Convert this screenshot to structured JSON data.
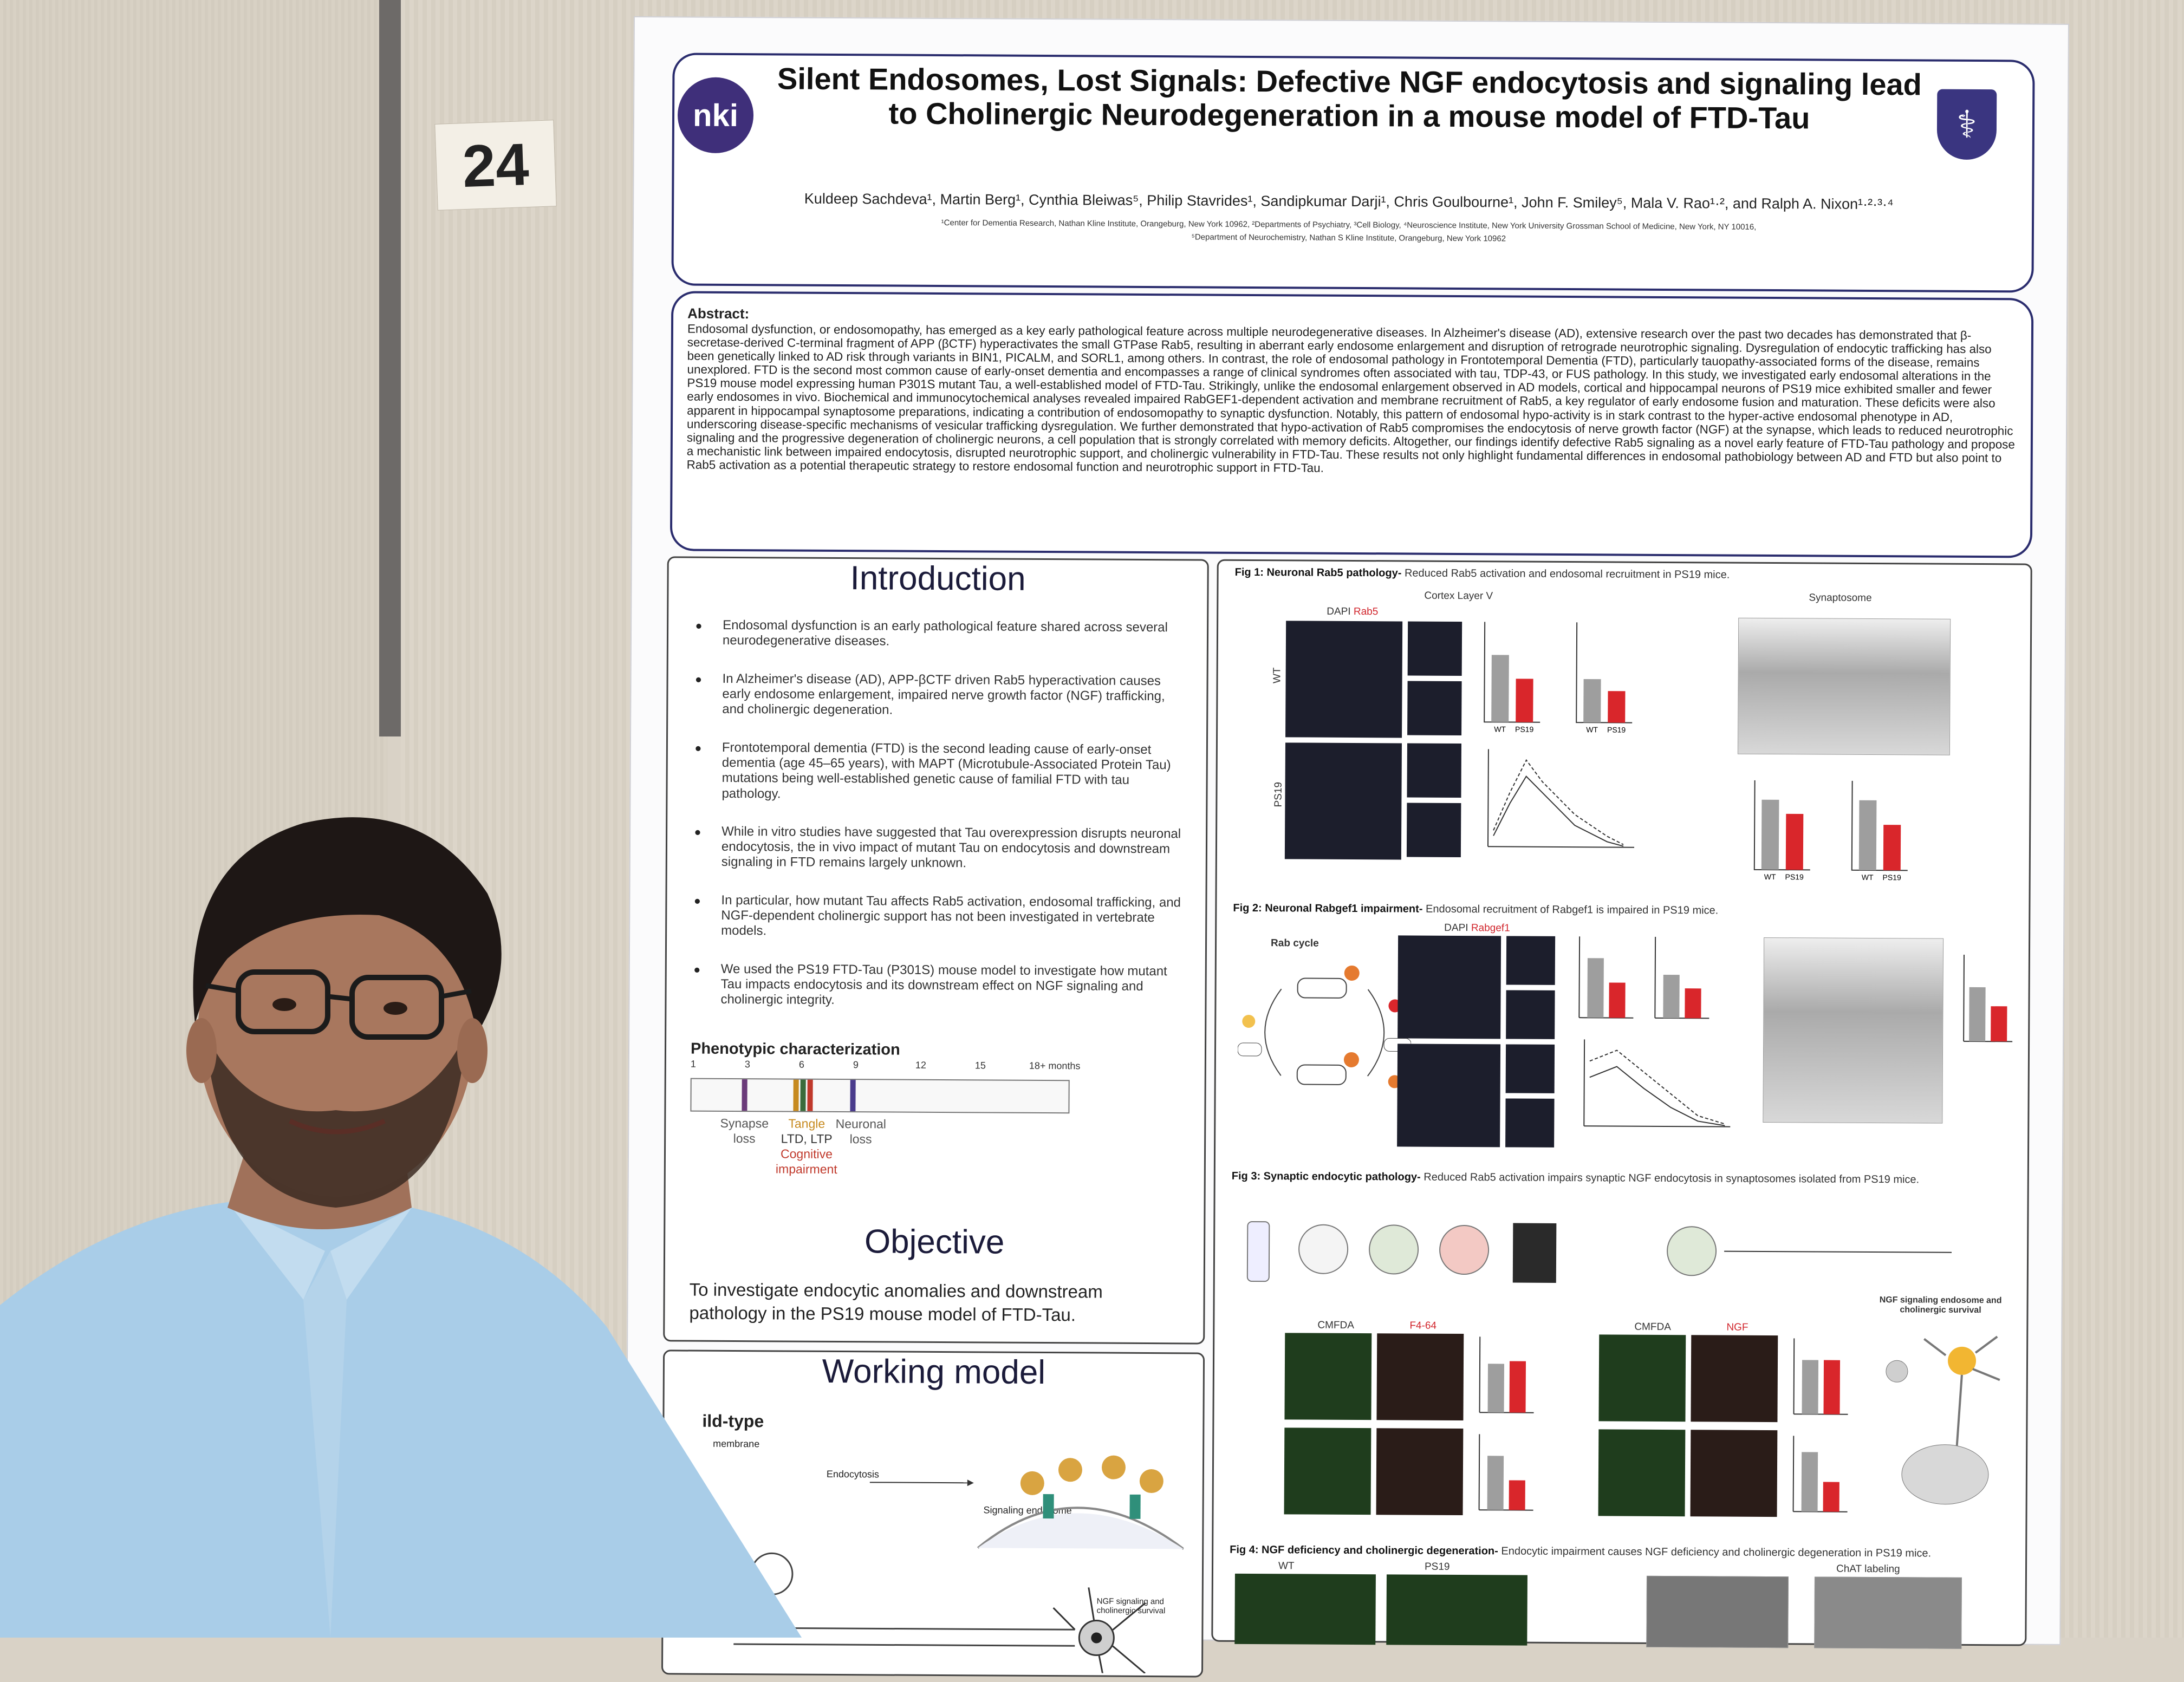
{
  "room_sign": "24",
  "poster": {
    "logo_text": "nki",
    "title": "Silent Endosomes, Lost Signals: Defective NGF endocytosis and signaling lead to Cholinergic Neurodegeneration in a mouse model of FTD-Tau",
    "authors": "Kuldeep Sachdeva¹, Martin Berg¹, Cynthia Bleiwas⁵, Philip Stavrides¹, Sandipkumar Darji¹, Chris Goulbourne¹, John F. Smiley⁵, Mala V. Rao¹·², and Ralph A. Nixon¹·²·³·⁴",
    "affiliations_1": "¹Center for Dementia Research, Nathan Kline Institute, Orangeburg, New York 10962, ²Departments of Psychiatry, ³Cell Biology, ⁴Neuroscience Institute, New York University Grossman School of Medicine, New York, NY 10016,",
    "affiliations_2": "⁵Department of Neurochemistry, Nathan S Kline Institute, Orangeburg, New York 10962",
    "abstract_heading": "Abstract:",
    "abstract": "Endosomal dysfunction, or endosomopathy, has emerged as a key early pathological feature across multiple neurodegenerative diseases. In Alzheimer's disease (AD), extensive research over the past two decades has demonstrated that β-secretase-derived C-terminal fragment of APP (βCTF) hyperactivates the small GTPase Rab5, resulting in aberrant early endosome enlargement and disruption of retrograde neurotrophic signaling. Dysregulation of endocytic trafficking has also been genetically linked to AD risk through variants in BIN1, PICALM, and SORL1, among others. In contrast, the role of endosomal pathology in Frontotemporal Dementia (FTD), particularly tauopathy-associated forms of the disease, remains unexplored. FTD is the second most common cause of early-onset dementia and encompasses a range of clinical syndromes often associated with tau, TDP-43, or FUS pathology. In this study, we investigated early endosomal alterations in the PS19 mouse model expressing human P301S mutant Tau, a well-established model of FTD-Tau. Strikingly, unlike the endosomal enlargement observed in AD models, cortical and hippocampal neurons of PS19 mice exhibited smaller and fewer early endosomes in vivo. Biochemical and immunocytochemical analyses revealed impaired RabGEF1-dependent activation and membrane recruitment of Rab5, a key regulator of early endosome fusion and maturation. These deficits were also apparent in hippocampal synaptosome preparations, indicating a contribution of endosomopathy to synaptic dysfunction. Notably, this pattern of endosomal hypo-activity is in stark contrast to the hyper-active endosomal phenotype in AD, underscoring disease-specific mechanisms of vesicular trafficking dysregulation. We further demonstrated that hypo-activation of Rab5 compromises the endocytosis of nerve growth factor (NGF) at the synapse, which leads to reduced neurotrophic signaling and the progressive degeneration of cholinergic neurons, a cell population that is strongly correlated with memory deficits. Altogether, our findings identify defective Rab5 signaling as a novel early feature of FTD-Tau pathology and propose a mechanistic link between impaired endocytosis, disrupted neurotrophic support, and cholinergic vulnerability in FTD-Tau. These results not only highlight fundamental differences in endosomal pathobiology between AD and FTD but also point to Rab5 activation as a potential therapeutic strategy to restore endosomal function and neurotrophic support in FTD-Tau.",
    "intro_heading": "Introduction",
    "intro_bullets": [
      "Endosomal dysfunction is an early pathological feature shared across several neurodegenerative diseases.",
      "In Alzheimer's disease (AD), APP-βCTF driven Rab5 hyperactivation causes early endosome enlargement, impaired nerve growth factor (NGF) trafficking, and cholinergic degeneration.",
      "Frontotemporal dementia (FTD) is the second leading cause of early-onset dementia (age 45–65 years), with MAPT (Microtubule-Associated Protein Tau) mutations being well-established genetic cause of familial FTD with tau pathology.",
      "While in vitro studies have suggested that Tau overexpression disrupts neuronal endocytosis, the in vivo impact of mutant Tau on endocytosis and downstream signaling in FTD remains largely unknown.",
      "In particular, how mutant Tau affects Rab5 activation, endosomal trafficking, and NGF-dependent cholinergic support has not been investigated in vertebrate models.",
      "We used the PS19 FTD-Tau (P301S) mouse model to investigate how mutant Tau impacts endocytosis and its downstream effect on NGF signaling and cholinergic integrity."
    ],
    "pheno_heading": "Phenotypic characterization",
    "timeline_ticks": [
      "1",
      "3",
      "6",
      "9",
      "12",
      "15",
      "18+ months"
    ],
    "timeline_labels": {
      "synapse": "Synapse loss",
      "tangle": "Tangle",
      "ltd": "LTD, LTP",
      "cognitive": "Cognitive impairment",
      "neuronal": "Neuronal loss"
    },
    "timeline_colors": {
      "synapse": "#6b3b7a",
      "tangle": "#c78a1f",
      "ltd": "#3b6b3b",
      "cognitive": "#c0392b",
      "neuronal": "#4a3c8c"
    },
    "objective_heading": "Objective",
    "objective_text": "To investigate endocytic anomalies and downstream pathology in the PS19 mouse model of FTD-Tau.",
    "model_heading": "Working model",
    "model_labels": {
      "wt": "ild-type",
      "membrane": "membrane",
      "endocytosis": "Endocytosis",
      "signaling": "Signaling endosome",
      "ngf": "NGF signaling and cholinergic survival"
    },
    "figs": {
      "fig1_title": "Fig 1: Neuronal Rab5 pathology-",
      "fig1_caption": "Reduced Rab5 activation and endosomal recruitment in PS19 mice.",
      "fig1_cortex": "Cortex Layer V",
      "fig1_synaptosome": "Synaptosome",
      "fig1_stain": "DAPI",
      "fig1_stain_red": "Rab5",
      "fig2_title": "Fig 2: Neuronal Rabgef1 impairment-",
      "fig2_caption": "Endosomal recruitment of Rabgef1 is impaired in PS19 mice.",
      "fig2_rabcycle": "Rab cycle",
      "fig2_stain": "DAPI",
      "fig2_stain_red": "Rabgef1",
      "fig3_title": "Fig 3: Synaptic endocytic pathology-",
      "fig3_caption": "Reduced Rab5 activation impairs synaptic NGF endocytosis in synaptosomes isolated from PS19 mice.",
      "fig3_cmfda": "CMFDA",
      "fig3_f464": "F4-64",
      "fig3_ngf": "NGF",
      "fig3_side": "NGF signaling endosome and cholinergic survival",
      "fig4_title": "Fig 4: NGF deficiency and cholinergic degeneration-",
      "fig4_caption": "Endocytic impairment causes NGF deficiency and cholinergic degeneration in PS19 mice.",
      "fig4_chat": "ChAT labeling",
      "wt": "WT",
      "ps19": "PS19"
    },
    "bar_colors": {
      "wt": "#9e9e9e",
      "ps19": "#d9262b"
    }
  },
  "chart_data": [
    {
      "type": "bar",
      "categories": [
        "WT",
        "PS19"
      ],
      "values": [
        0.85,
        0.55
      ]
    },
    {
      "type": "bar",
      "categories": [
        "WT",
        "PS19"
      ],
      "values": [
        0.55,
        0.4
      ]
    },
    {
      "type": "bar",
      "categories": [
        "WT",
        "PS19"
      ],
      "values": [
        1.0,
        0.8
      ]
    },
    {
      "type": "bar",
      "categories": [
        "WT",
        "PS19"
      ],
      "values": [
        1.0,
        0.65
      ]
    }
  ]
}
